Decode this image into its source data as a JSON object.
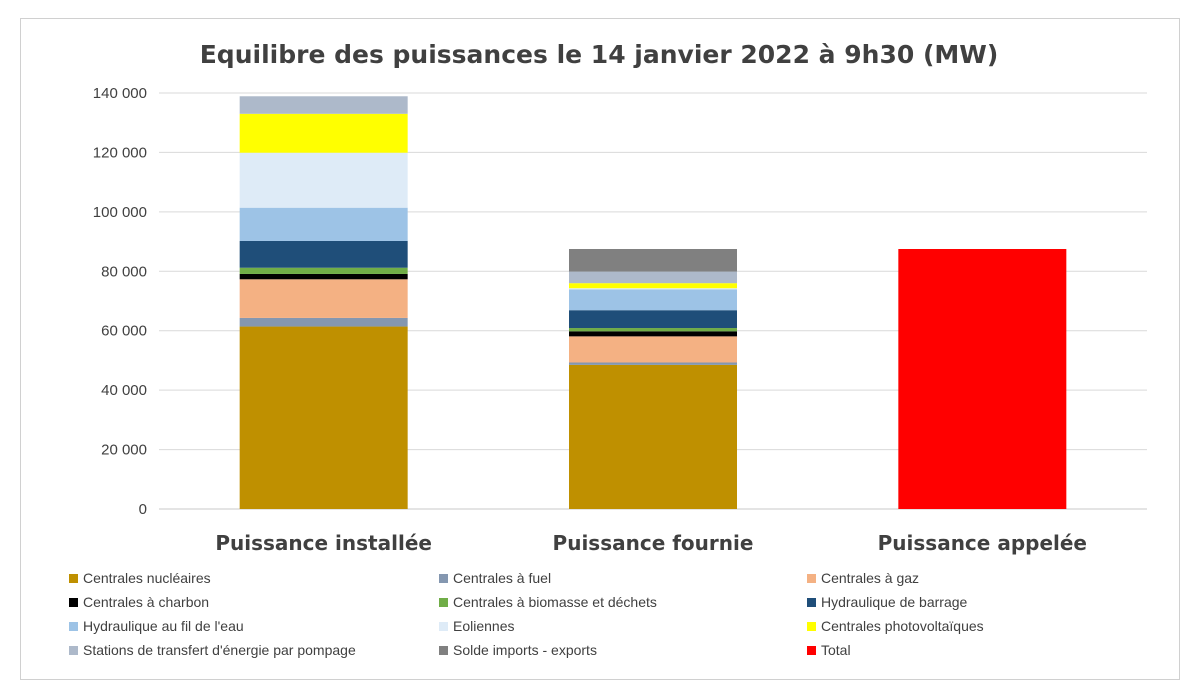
{
  "chart_data": {
    "type": "bar",
    "stacked": true,
    "title": "Equilibre des puissances le 14 janvier 2022 à 9h30 (MW)",
    "xlabel": "",
    "ylabel": "",
    "ylim": [
      0,
      140000
    ],
    "y_ticks": [
      0,
      20000,
      40000,
      60000,
      80000,
      100000,
      120000,
      140000
    ],
    "y_tick_labels": [
      "0",
      "20 000",
      "40 000",
      "60 000",
      "80 000",
      "100 000",
      "120 000",
      "140 000"
    ],
    "grid": true,
    "legend_position": "bottom",
    "categories": [
      "Puissance installée",
      "Puissance fournie",
      "Puissance appelée"
    ],
    "series": [
      {
        "name": "Centrales nucléaires",
        "color": "#BF9000",
        "values": [
          61400,
          48500,
          0
        ]
      },
      {
        "name": "Centrales à fuel",
        "color": "#8497B0",
        "values": [
          2900,
          800,
          0
        ]
      },
      {
        "name": "Centrales à gaz",
        "color": "#F4B183",
        "values": [
          13000,
          8800,
          0
        ]
      },
      {
        "name": "Centrales à charbon",
        "color": "#000000",
        "values": [
          1800,
          1700,
          0
        ]
      },
      {
        "name": "Centrales à biomasse et déchets",
        "color": "#70AD47",
        "values": [
          2100,
          1100,
          0
        ]
      },
      {
        "name": "Hydraulique de barrage",
        "color": "#1F4E79",
        "values": [
          9000,
          6000,
          0
        ]
      },
      {
        "name": "Hydraulique au fil de l'eau",
        "color": "#9DC3E6",
        "values": [
          11200,
          7000,
          0
        ]
      },
      {
        "name": "Eoliennes",
        "color": "#DEEBF7",
        "values": [
          18500,
          400,
          0
        ]
      },
      {
        "name": "Centrales photovoltaïques",
        "color": "#FFFF00",
        "values": [
          13100,
          1700,
          0
        ]
      },
      {
        "name": "Stations de transfert d'énergie par pompage",
        "color": "#ADB9CA",
        "values": [
          5900,
          3900,
          0
        ]
      },
      {
        "name": "Solde imports - exports",
        "color": "#808080",
        "values": [
          0,
          7600,
          0
        ]
      },
      {
        "name": "Total",
        "color": "#FF0000",
        "values": [
          0,
          0,
          87500
        ]
      }
    ]
  }
}
